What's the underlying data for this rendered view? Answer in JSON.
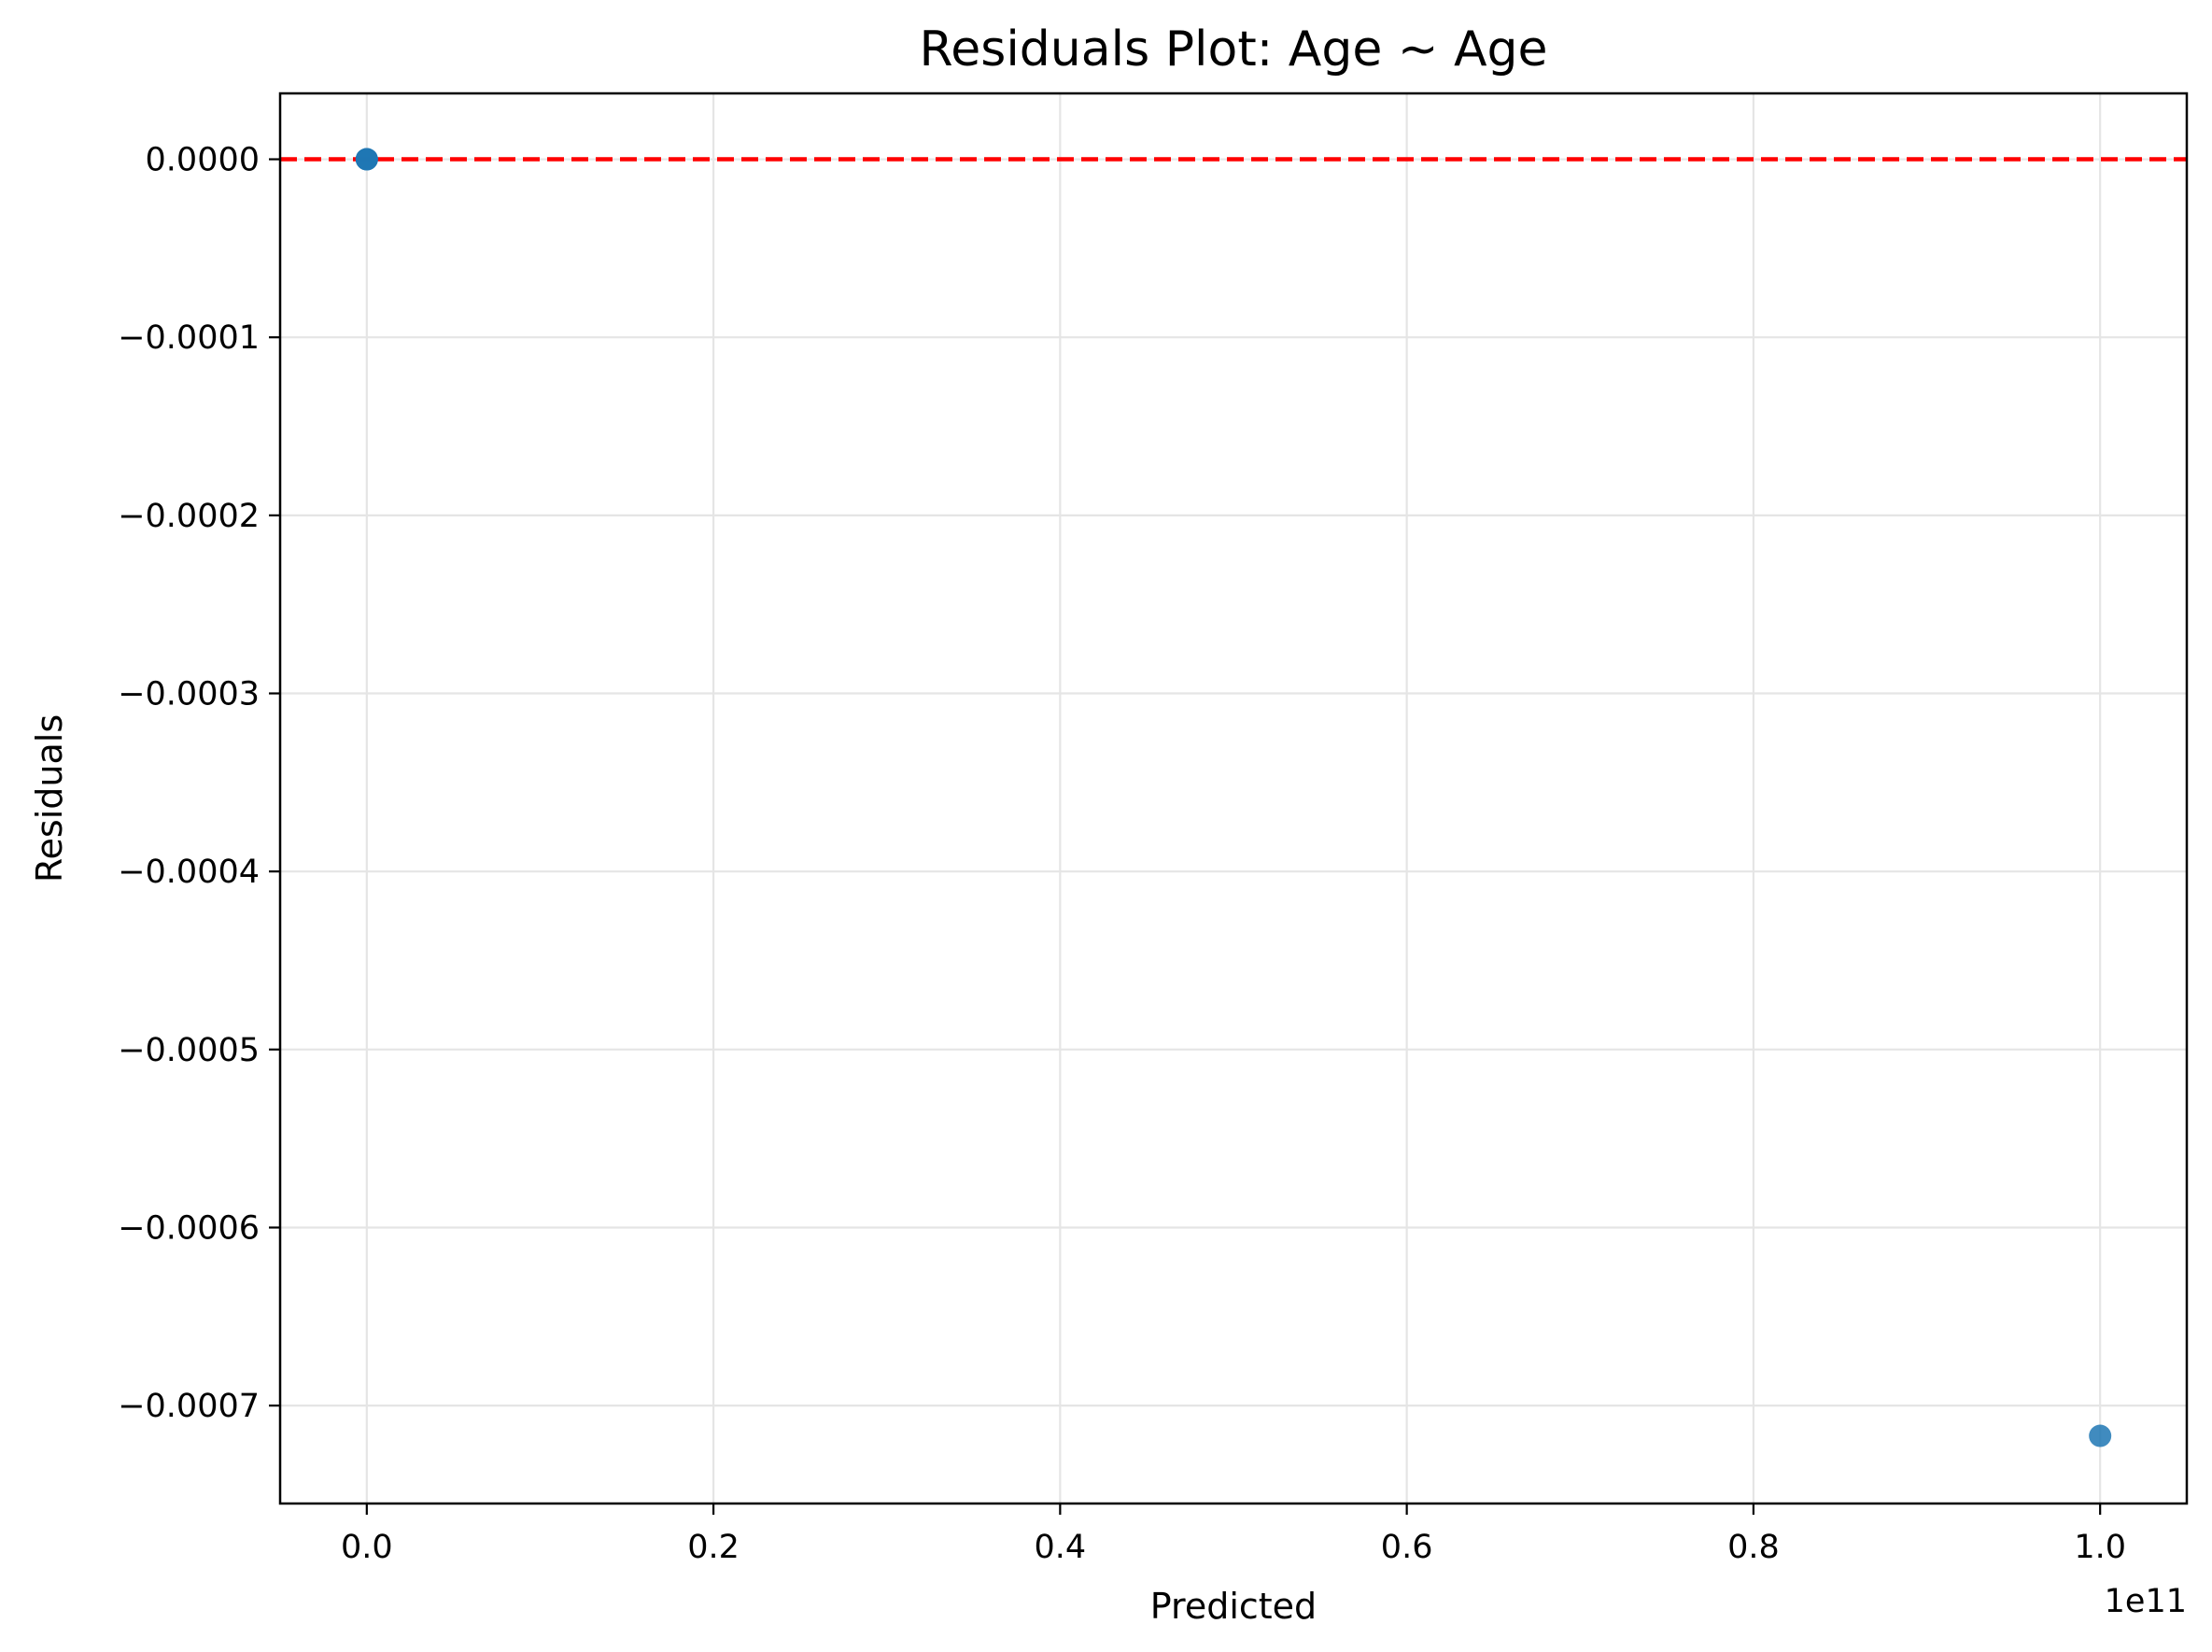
{
  "chart_data": {
    "type": "scatter",
    "title": "Residuals Plot: Age ~ Age",
    "xlabel": "Predicted",
    "ylabel": "Residuals",
    "x_offset_label": "1e11",
    "xlim": [
      -0.05,
      1.05
    ],
    "ylim": [
      -0.000755,
      3.7e-05
    ],
    "grid": true,
    "x_ticks": [
      {
        "value": 0.0,
        "label": "0.0"
      },
      {
        "value": 0.2,
        "label": "0.2"
      },
      {
        "value": 0.4,
        "label": "0.4"
      },
      {
        "value": 0.6,
        "label": "0.6"
      },
      {
        "value": 0.8,
        "label": "0.8"
      },
      {
        "value": 1.0,
        "label": "1.0"
      }
    ],
    "y_ticks": [
      {
        "value": 0.0,
        "label": "0.0000"
      },
      {
        "value": -0.0001,
        "label": "−0.0001"
      },
      {
        "value": -0.0002,
        "label": "−0.0002"
      },
      {
        "value": -0.0003,
        "label": "−0.0003"
      },
      {
        "value": -0.0004,
        "label": "−0.0004"
      },
      {
        "value": -0.0005,
        "label": "−0.0005"
      },
      {
        "value": -0.0006,
        "label": "−0.0006"
      },
      {
        "value": -0.0007,
        "label": "−0.0007"
      }
    ],
    "points": [
      {
        "x": 0.0,
        "y": 0.0
      },
      {
        "x": 0.0,
        "y": 0.0
      },
      {
        "x": 0.0,
        "y": 0.0
      },
      {
        "x": 1.0,
        "y": -0.000717
      }
    ],
    "reference_line": {
      "y": 0.0,
      "style": "dashed",
      "color": "#ff0000"
    },
    "point_color": "#1f77b4"
  }
}
